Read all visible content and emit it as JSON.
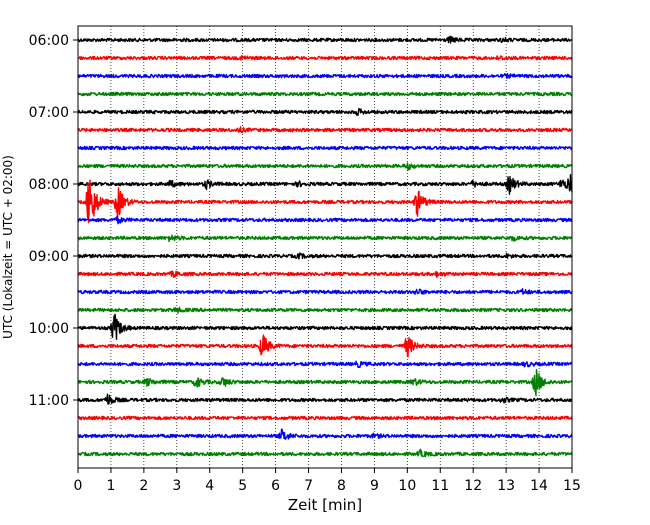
{
  "chart_data": {
    "type": "line",
    "title": "",
    "xlabel": "Zeit  [min]",
    "ylabel": "UTC (Lokalzeit = UTC + 02:00)",
    "xlim": [
      0,
      15
    ],
    "x_ticks": [
      "0",
      "1",
      "2",
      "3",
      "4",
      "5",
      "6",
      "7",
      "8",
      "9",
      "10",
      "11",
      "12",
      "13",
      "14",
      "15"
    ],
    "y_ticks": [
      "06:00",
      "07:00",
      "08:00",
      "09:00",
      "10:00",
      "11:00"
    ],
    "grid": "vertical-dotted",
    "trace_colors": [
      "#000000",
      "#ff0000",
      "#0000ff",
      "#008000"
    ],
    "traces": [
      {
        "start": "06:00",
        "color": "#000000",
        "events": [
          {
            "t": 11.3,
            "amp": 0.25
          },
          {
            "t": 12.9,
            "amp": 0.15
          }
        ]
      },
      {
        "start": "06:15",
        "color": "#ff0000",
        "events": [
          {
            "t": 5.0,
            "amp": 0.15
          },
          {
            "t": 12.8,
            "amp": 0.15
          }
        ]
      },
      {
        "start": "06:30",
        "color": "#0000ff",
        "events": [
          {
            "t": 13.0,
            "amp": 0.12
          }
        ]
      },
      {
        "start": "06:45",
        "color": "#008000",
        "events": []
      },
      {
        "start": "07:00",
        "color": "#000000",
        "events": [
          {
            "t": 8.5,
            "amp": 0.25
          }
        ]
      },
      {
        "start": "07:15",
        "color": "#ff0000",
        "events": [
          {
            "t": 4.9,
            "amp": 0.2
          }
        ]
      },
      {
        "start": "07:30",
        "color": "#0000ff",
        "events": []
      },
      {
        "start": "07:45",
        "color": "#008000",
        "events": [
          {
            "t": 10.0,
            "amp": 0.3
          }
        ]
      },
      {
        "start": "08:00",
        "color": "#000000",
        "events": [
          {
            "t": 2.8,
            "amp": 0.3
          },
          {
            "t": 3.9,
            "amp": 0.4
          },
          {
            "t": 6.7,
            "amp": 0.2
          },
          {
            "t": 12.0,
            "amp": 0.25
          },
          {
            "t": 13.1,
            "amp": 0.9
          },
          {
            "t": 14.7,
            "amp": 0.5
          },
          {
            "t": 14.95,
            "amp": 0.9
          }
        ]
      },
      {
        "start": "08:15",
        "color": "#ff0000",
        "events": [
          {
            "t": 0.35,
            "amp": 3.5
          },
          {
            "t": 1.2,
            "amp": 1.8
          },
          {
            "t": 10.3,
            "amp": 1.4
          }
        ]
      },
      {
        "start": "08:30",
        "color": "#0000ff",
        "events": [
          {
            "t": 1.2,
            "amp": 0.25
          }
        ]
      },
      {
        "start": "08:45",
        "color": "#008000",
        "events": [
          {
            "t": 2.8,
            "amp": 0.3
          },
          {
            "t": 13.2,
            "amp": 0.2
          }
        ]
      },
      {
        "start": "09:00",
        "color": "#000000",
        "events": [
          {
            "t": 6.7,
            "amp": 0.2
          },
          {
            "t": 13.0,
            "amp": 0.15
          }
        ]
      },
      {
        "start": "09:15",
        "color": "#ff0000",
        "events": [
          {
            "t": 2.9,
            "amp": 0.25
          },
          {
            "t": 10.9,
            "amp": 0.2
          }
        ]
      },
      {
        "start": "09:30",
        "color": "#0000ff",
        "events": [
          {
            "t": 10.3,
            "amp": 0.25
          },
          {
            "t": 13.5,
            "amp": 0.2
          }
        ]
      },
      {
        "start": "09:45",
        "color": "#008000",
        "events": [
          {
            "t": 3.0,
            "amp": 0.2
          }
        ]
      },
      {
        "start": "10:00",
        "color": "#000000",
        "events": [
          {
            "t": 1.1,
            "amp": 1.6
          }
        ]
      },
      {
        "start": "10:15",
        "color": "#ff0000",
        "events": [
          {
            "t": 5.6,
            "amp": 1.3
          },
          {
            "t": 10.0,
            "amp": 1.1
          }
        ]
      },
      {
        "start": "10:30",
        "color": "#0000ff",
        "events": [
          {
            "t": 8.5,
            "amp": 0.25
          },
          {
            "t": 13.6,
            "amp": 0.2
          }
        ]
      },
      {
        "start": "10:45",
        "color": "#008000",
        "events": [
          {
            "t": 2.1,
            "amp": 0.35
          },
          {
            "t": 3.6,
            "amp": 0.5
          },
          {
            "t": 4.4,
            "amp": 0.45
          },
          {
            "t": 10.2,
            "amp": 0.3
          },
          {
            "t": 13.9,
            "amp": 1.4
          }
        ]
      },
      {
        "start": "11:00",
        "color": "#000000",
        "events": [
          {
            "t": 0.9,
            "amp": 0.55
          },
          {
            "t": 12.9,
            "amp": 0.2
          }
        ]
      },
      {
        "start": "11:15",
        "color": "#ff0000",
        "events": []
      },
      {
        "start": "11:30",
        "color": "#0000ff",
        "events": [
          {
            "t": 6.2,
            "amp": 0.6
          },
          {
            "t": 9.0,
            "amp": 0.15
          }
        ]
      },
      {
        "start": "11:45",
        "color": "#008000",
        "events": [
          {
            "t": 10.4,
            "amp": 0.3
          }
        ]
      }
    ]
  }
}
